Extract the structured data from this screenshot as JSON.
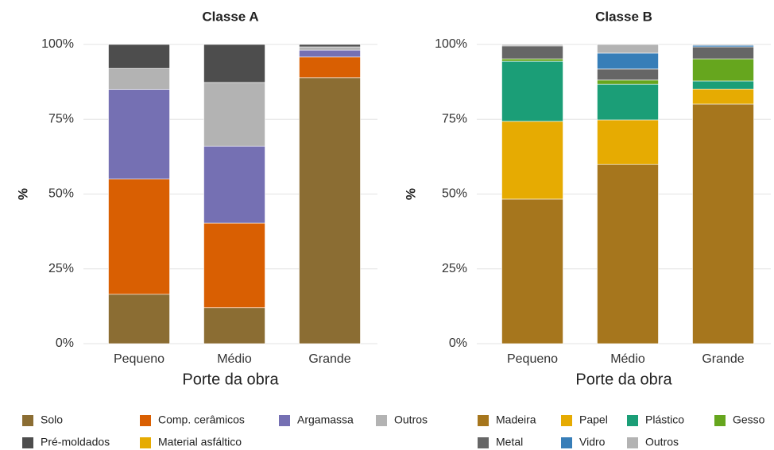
{
  "chart_data": [
    {
      "type": "stacked_bar",
      "title": "Classe A",
      "x_label": "Porte da obra",
      "y_label": "%",
      "categories": [
        "Pequeno",
        "Médio",
        "Grande"
      ],
      "series": [
        {
          "name": "Solo",
          "color": "#8B6D33",
          "values": [
            16.5,
            12,
            88.9
          ]
        },
        {
          "name": "Comp. cerâmicos",
          "color": "#D95F02",
          "values": [
            38.5,
            28.3,
            6.9
          ]
        },
        {
          "name": "Argamassa",
          "color": "#7570B3",
          "values": [
            30,
            25.7,
            2.3
          ]
        },
        {
          "name": "Outros",
          "color": "#B3B3B3",
          "values": [
            7,
            21.3,
            1.1
          ]
        },
        {
          "name": "Pré-moldados",
          "color": "#4D4D4D",
          "values": [
            8,
            12.7,
            0.8
          ]
        },
        {
          "name": "Material asfáltico",
          "color": "#E6AB02",
          "values": [
            0,
            0,
            0
          ]
        }
      ],
      "ylim": [
        0,
        100
      ],
      "yticks": [
        {
          "value": 0,
          "label": "0%"
        },
        {
          "value": 25,
          "label": "25%"
        },
        {
          "value": 50,
          "label": "50%"
        },
        {
          "value": 75,
          "label": "75%"
        },
        {
          "value": 100,
          "label": "100%"
        }
      ],
      "grid": true
    },
    {
      "type": "stacked_bar",
      "title": "Classe B",
      "x_label": "Porte da obra",
      "y_label": "%",
      "categories": [
        "Pequeno",
        "Médio",
        "Grande"
      ],
      "series": [
        {
          "name": "Madeira",
          "color": "#A6761D",
          "values": [
            48.3,
            59.9,
            80.1
          ]
        },
        {
          "name": "Papel",
          "color": "#E6AB02",
          "values": [
            26,
            14.9,
            5
          ]
        },
        {
          "name": "Plástico",
          "color": "#1B9E77",
          "values": [
            20.1,
            11.9,
            2.7
          ]
        },
        {
          "name": "Gesso",
          "color": "#66A61E",
          "values": [
            0.8,
            1.4,
            7.4
          ]
        },
        {
          "name": "Metal",
          "color": "#666666",
          "values": [
            4.3,
            3.7,
            4
          ]
        },
        {
          "name": "Vidro",
          "color": "#377EB8",
          "values": [
            0,
            5.3,
            0.5
          ]
        },
        {
          "name": "Outros",
          "color": "#B3B3B3",
          "values": [
            0.5,
            2.9,
            0.3
          ]
        }
      ],
      "ylim": [
        0,
        100
      ],
      "yticks": [
        {
          "value": 0,
          "label": "0%"
        },
        {
          "value": 25,
          "label": "25%"
        },
        {
          "value": 50,
          "label": "50%"
        },
        {
          "value": 75,
          "label": "75%"
        },
        {
          "value": 100,
          "label": "100%"
        }
      ],
      "grid": true
    }
  ]
}
